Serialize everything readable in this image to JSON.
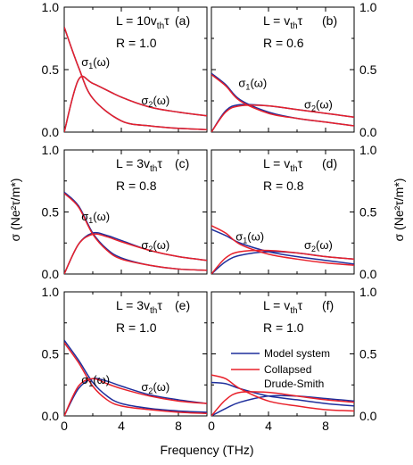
{
  "figure": {
    "xlabel": "Frequency (THz)",
    "ylabel_left": "σ (Ne²τ/m*)",
    "ylabel_right": "σ (Ne²τ/m*)"
  },
  "legend": {
    "entries": [
      {
        "label": "Model system",
        "color": "#1f2f9c"
      },
      {
        "label": "Collapsed",
        "color": "#e8202a"
      },
      {
        "label": "Drude-Smith",
        "color": "#e8202a"
      }
    ]
  },
  "colors": {
    "model": "#1f2f9c",
    "drude_smith": "#e8202a"
  },
  "chart_data": [
    {
      "type": "line",
      "panel_label": "(a)",
      "L_text": "10v",
      "L_sub": "th",
      "L_tau": "τ",
      "R_text": "R = 1.0",
      "xlim": [
        0,
        10
      ],
      "ylim": [
        0,
        1.0
      ],
      "xticks": [
        "0",
        "4",
        "8"
      ],
      "yticks": [
        "0.0",
        "0.5",
        "1.0"
      ],
      "sigma1_label": "σ1(ω)",
      "sigma2_label": "σ2(ω)",
      "x": [
        0,
        1,
        2,
        4,
        6,
        8,
        10
      ],
      "series": [
        {
          "name": "Model system",
          "curve": "σ1",
          "values": [
            0.84,
            0.52,
            0.27,
            0.09,
            0.05,
            0.03,
            0.02
          ]
        },
        {
          "name": "Model system",
          "curve": "σ2",
          "values": [
            0.0,
            0.42,
            0.39,
            0.28,
            0.2,
            0.16,
            0.13
          ]
        },
        {
          "name": "Collapsed Drude-Smith",
          "curve": "σ1",
          "values": [
            0.84,
            0.52,
            0.27,
            0.09,
            0.05,
            0.03,
            0.02
          ]
        },
        {
          "name": "Collapsed Drude-Smith",
          "curve": "σ2",
          "values": [
            0.0,
            0.42,
            0.39,
            0.28,
            0.2,
            0.16,
            0.13
          ]
        }
      ]
    },
    {
      "type": "line",
      "panel_label": "(b)",
      "L_text": "v",
      "L_sub": "th",
      "L_tau": "τ",
      "R_text": "R = 0.6",
      "xlim": [
        0,
        10
      ],
      "ylim": [
        0,
        1.0
      ],
      "xticks": [
        "0",
        "4",
        "8"
      ],
      "yticks": [
        "0.0",
        "0.5",
        "1.0"
      ],
      "sigma1_label": "σ1(ω)",
      "sigma2_label": "σ2(ω)",
      "x": [
        0,
        1,
        2,
        4,
        6,
        8,
        10
      ],
      "series": [
        {
          "name": "Model system",
          "curve": "σ1",
          "values": [
            0.47,
            0.38,
            0.26,
            0.16,
            0.11,
            0.08,
            0.05
          ]
        },
        {
          "name": "Model system",
          "curve": "σ2",
          "values": [
            0.0,
            0.17,
            0.22,
            0.21,
            0.18,
            0.15,
            0.12
          ]
        },
        {
          "name": "Collapsed Drude-Smith",
          "curve": "σ1",
          "values": [
            0.46,
            0.37,
            0.25,
            0.15,
            0.11,
            0.08,
            0.05
          ]
        },
        {
          "name": "Collapsed Drude-Smith",
          "curve": "σ2",
          "values": [
            0.0,
            0.16,
            0.21,
            0.21,
            0.18,
            0.15,
            0.12
          ]
        }
      ]
    },
    {
      "type": "line",
      "panel_label": "(c)",
      "L_text": "3v",
      "L_sub": "th",
      "L_tau": "τ",
      "R_text": "R = 0.8",
      "xlim": [
        0,
        10
      ],
      "ylim": [
        0,
        1.0
      ],
      "xticks": [
        "0",
        "4",
        "8"
      ],
      "yticks": [
        "0.0",
        "0.5",
        "1.0"
      ],
      "sigma1_label": "σ1(ω)",
      "sigma2_label": "σ2(ω)",
      "x": [
        0,
        1,
        2,
        3,
        4,
        6,
        8,
        10
      ],
      "series": [
        {
          "name": "Model system",
          "curve": "σ1",
          "values": [
            0.66,
            0.55,
            0.33,
            0.2,
            0.13,
            0.07,
            0.04,
            0.03
          ]
        },
        {
          "name": "Model system",
          "curve": "σ2",
          "values": [
            0.0,
            0.24,
            0.33,
            0.31,
            0.27,
            0.19,
            0.14,
            0.11
          ]
        },
        {
          "name": "Collapsed Drude-Smith",
          "curve": "σ1",
          "values": [
            0.65,
            0.54,
            0.32,
            0.19,
            0.12,
            0.07,
            0.04,
            0.03
          ]
        },
        {
          "name": "Collapsed Drude-Smith",
          "curve": "σ2",
          "values": [
            0.0,
            0.24,
            0.32,
            0.3,
            0.26,
            0.19,
            0.14,
            0.11
          ]
        }
      ]
    },
    {
      "type": "line",
      "panel_label": "(d)",
      "L_text": "v",
      "L_sub": "th",
      "L_tau": "τ",
      "R_text": "R = 0.8",
      "xlim": [
        0,
        10
      ],
      "ylim": [
        0,
        1.0
      ],
      "xticks": [
        "0",
        "4",
        "8"
      ],
      "yticks": [
        "0.0",
        "0.5",
        "1.0"
      ],
      "sigma1_label": "σ1(ω)",
      "sigma2_label": "σ2(ω)",
      "x": [
        0,
        1,
        2,
        4,
        6,
        8,
        10
      ],
      "series": [
        {
          "name": "Model system",
          "curve": "σ1",
          "values": [
            0.36,
            0.31,
            0.25,
            0.18,
            0.14,
            0.11,
            0.08
          ]
        },
        {
          "name": "Model system",
          "curve": "σ2",
          "values": [
            0.0,
            0.1,
            0.15,
            0.18,
            0.17,
            0.14,
            0.12
          ]
        },
        {
          "name": "Collapsed Drude-Smith",
          "curve": "σ1",
          "values": [
            0.39,
            0.33,
            0.24,
            0.16,
            0.12,
            0.09,
            0.07
          ]
        },
        {
          "name": "Collapsed Drude-Smith",
          "curve": "σ2",
          "values": [
            0.0,
            0.13,
            0.18,
            0.19,
            0.17,
            0.14,
            0.12
          ]
        }
      ]
    },
    {
      "type": "line",
      "panel_label": "(e)",
      "L_text": "3v",
      "L_sub": "th",
      "L_tau": "τ",
      "R_text": "R = 1.0",
      "xlim": [
        0,
        10
      ],
      "ylim": [
        0,
        1.0
      ],
      "xticks": [
        "0",
        "4",
        "8"
      ],
      "yticks": [
        "0.0",
        "0.5",
        "1.0"
      ],
      "sigma1_label": "σ1(ω)",
      "sigma2_label": "σ2(ω)",
      "x": [
        0,
        1,
        2,
        3,
        4,
        6,
        8,
        10
      ],
      "series": [
        {
          "name": "Model system",
          "curve": "σ1",
          "values": [
            0.61,
            0.45,
            0.27,
            0.16,
            0.1,
            0.06,
            0.04,
            0.03
          ]
        },
        {
          "name": "Model system",
          "curve": "σ2",
          "values": [
            0.0,
            0.22,
            0.3,
            0.28,
            0.24,
            0.17,
            0.13,
            0.1
          ]
        },
        {
          "name": "Collapsed Drude-Smith",
          "curve": "σ1",
          "values": [
            0.59,
            0.43,
            0.24,
            0.13,
            0.08,
            0.05,
            0.03,
            0.02
          ]
        },
        {
          "name": "Collapsed Drude-Smith",
          "curve": "σ2",
          "values": [
            0.0,
            0.24,
            0.3,
            0.26,
            0.22,
            0.16,
            0.12,
            0.1
          ]
        }
      ]
    },
    {
      "type": "line",
      "panel_label": "(f)",
      "L_text": "v",
      "L_sub": "th",
      "L_tau": "τ",
      "R_text": "R = 1.0",
      "xlim": [
        0,
        10
      ],
      "ylim": [
        0,
        1.0
      ],
      "xticks": [
        "0",
        "4",
        "8"
      ],
      "yticks": [
        "0.0",
        "0.5",
        "1.0"
      ],
      "sigma1_label": "",
      "sigma2_label": "",
      "x": [
        0,
        1,
        2,
        4,
        6,
        8,
        10
      ],
      "series": [
        {
          "name": "Model system",
          "curve": "σ1",
          "values": [
            0.27,
            0.26,
            0.22,
            0.16,
            0.13,
            0.1,
            0.08
          ]
        },
        {
          "name": "Model system",
          "curve": "σ2",
          "values": [
            0.0,
            0.06,
            0.11,
            0.16,
            0.16,
            0.14,
            0.12
          ]
        },
        {
          "name": "Collapsed Drude-Smith",
          "curve": "σ1",
          "values": [
            0.33,
            0.3,
            0.22,
            0.12,
            0.08,
            0.05,
            0.04
          ]
        },
        {
          "name": "Collapsed Drude-Smith",
          "curve": "σ2",
          "values": [
            0.0,
            0.13,
            0.19,
            0.19,
            0.16,
            0.13,
            0.11
          ]
        }
      ]
    }
  ]
}
